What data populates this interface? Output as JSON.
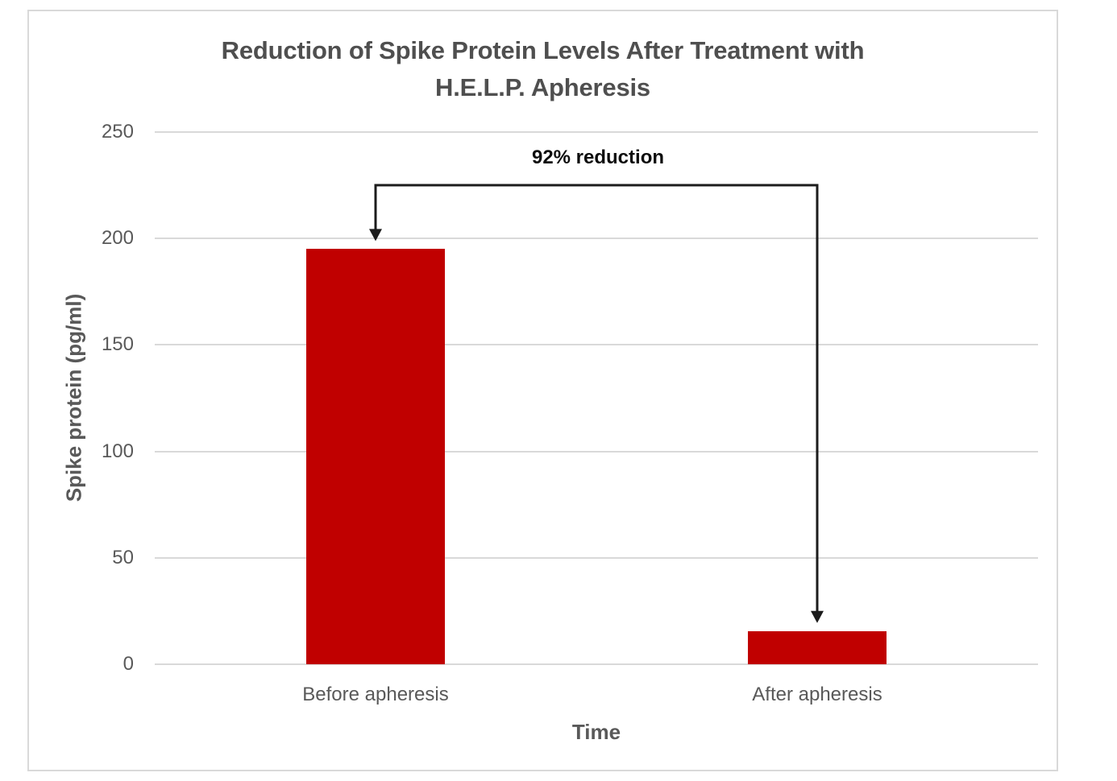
{
  "chart_data": {
    "type": "bar",
    "title_line1": "Reduction of Spike Protein Levels After Treatment with",
    "title_line2": "H.E.L.P. Apheresis",
    "categories": [
      "Before apheresis",
      "After apheresis"
    ],
    "values": [
      195,
      15.6
    ],
    "xlabel": "Time",
    "ylabel": "Spike protein (pg/ml)",
    "ylim": [
      0,
      250
    ],
    "yticks": [
      0,
      50,
      100,
      150,
      200,
      250
    ],
    "grid": "horizontal",
    "legend_position": "none",
    "bar_color": "#c00000",
    "gridline_color": "#d9d9d9",
    "annotation": {
      "text": "92% reduction",
      "from_category": "Before apheresis",
      "to_category": "After apheresis",
      "arrow_color": "#1c1c1c"
    }
  }
}
